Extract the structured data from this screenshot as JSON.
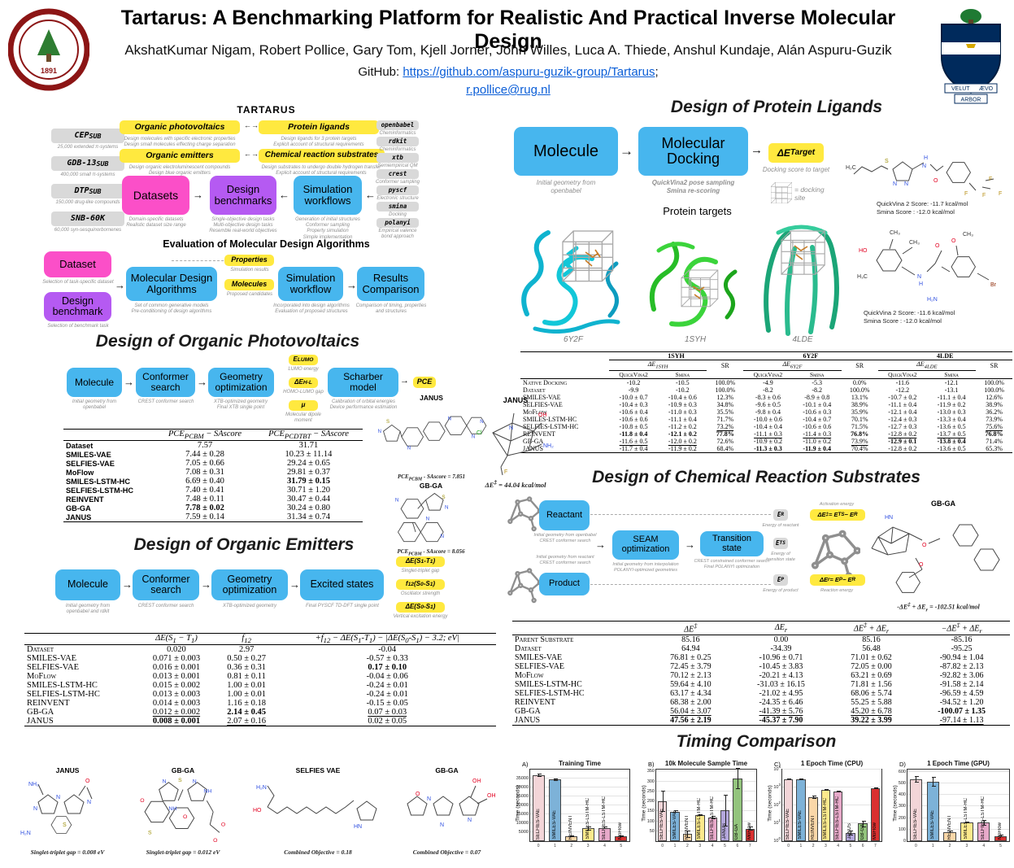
{
  "colors": {
    "blue": "#47b6ee",
    "yellow": "#ffe93f",
    "pink": "#fb4fc8",
    "purple": "#b55af2",
    "gray_box": "#d9d9d9",
    "link_blue": "#0b5ed7",
    "stanford_red": "#8c1515",
    "toronto_navy": "#002a5c"
  },
  "header": {
    "title": "Tartarus: A Benchmarking Platform for Realistic And Practical Inverse Molecular Design",
    "authors": "AkshatKumar Nigam, Robert Pollice, Gary Tom, Kjell Jorner, John Willes, Luca A. Thiede, Anshul Kundaje, Alán Aspuru-Guzik",
    "github_prefix": "GitHub: ",
    "github_url": "https://github.com/aspuru-guzik-group/Tartarus",
    "github_suffix": ";",
    "email": "r.pollice@rug.nl",
    "toronto_motto_left": "VELUT",
    "toronto_motto_right": "ÆVO",
    "toronto_motto_center": "ARBOR",
    "stanford_year": "1891"
  },
  "tartarus": {
    "title": "TARTARUS",
    "datasets": [
      {
        "name": "CEP~SUB~",
        "caption": "25,000 extended π-systems"
      },
      {
        "name": "GDB-13~SUB~",
        "caption": "400,000 small π-systems"
      },
      {
        "name": "DTP~SUB~",
        "caption": "150,000 drug-like compounds"
      },
      {
        "name": "SNB-60K",
        "caption": "60,000 syn-sesquinorbornenes"
      }
    ],
    "benchmark_boxes": [
      {
        "label": "Organic photovoltaics",
        "caption": "Design molecules with specific electronic properties\nDesign small molecules effecting charge separation"
      },
      {
        "label": "Protein ligands",
        "caption": "Design ligands for 3 protein targets\nExplicit account of structural requirements"
      },
      {
        "label": "Organic emitters",
        "caption": "Design organic electroluminescent compounds\nDesign blue organic emitters"
      },
      {
        "label": "Chemical reaction substrates",
        "caption": "Design substrates to undergo double hydrogen transfer\nExplicit account of structural requirements"
      }
    ],
    "datasets_box": {
      "label": "Datasets",
      "caption": "Domain-specific datasets\nRealistic dataset size range"
    },
    "benchmarks_box": {
      "label": "Design\nbenchmarks",
      "caption": "Single-objective design tasks\nMulti-objective design tasks\nResemble real-world objectives"
    },
    "workflows_box": {
      "label": "Simulation\nworkflows",
      "caption": "Generation of initial structures\nConformer sampling\nProperty simulation\nSimple implementation"
    },
    "tools": [
      {
        "name": "openbabel",
        "caption": "Cheminformatics"
      },
      {
        "name": "rdkit",
        "caption": "Cheminformatics"
      },
      {
        "name": "xtb",
        "caption": "Semiempirical QM"
      },
      {
        "name": "crest",
        "caption": "Conformer sampling"
      },
      {
        "name": "pyscf",
        "caption": "Electronic structure"
      },
      {
        "name": "smina",
        "caption": "Docking"
      },
      {
        "name": "polanyi",
        "caption": "Empirical valence\nbond approach"
      }
    ]
  },
  "evaluation": {
    "title": "Evaluation of Molecular Design Algorithms",
    "dataset": {
      "label": "Dataset",
      "caption": "Selection of task-specific dataset"
    },
    "benchmark": {
      "label": "Design\nbenchmark",
      "caption": "Selection of benchmark task"
    },
    "algorithms": {
      "label": "Molecular Design\nAlgorithms",
      "caption": "Set of common generative models\nPre-conditioning of design algorithms"
    },
    "properties": {
      "label": "Properties",
      "caption": "Simulation results"
    },
    "molecules": {
      "label": "Molecules",
      "caption": "Proposed candidates"
    },
    "workflow": {
      "label": "Simulation\nworkflow",
      "caption": "Incorporated into design algorithms\nEvaluation of proposed structures"
    },
    "results": {
      "label": "Results\nComparison",
      "caption": "Comparison of timing, properties\nand structures"
    }
  },
  "photovoltaics": {
    "heading": "Design of Organic Photovoltaics",
    "boxes": [
      {
        "label": "Molecule",
        "caption": "Initial geometry from\nopenbabel"
      },
      {
        "label": "Conformer\nsearch",
        "caption": "CREST conformer search"
      },
      {
        "label": "Geometry\noptimization",
        "caption": "XTB-optimized geometry\nFinal XTB single point"
      },
      {
        "label": "Scharber model",
        "caption": "Calibration of orbital energies\nDevice performance estimation"
      }
    ],
    "outputs": [
      {
        "label": "E~LUMO~",
        "caption": "LUMO energy"
      },
      {
        "label": "ΔE~H-L~",
        "caption": "HOMO-LUMO gap"
      },
      {
        "label": "μ",
        "caption": "Molecular dipole moment"
      }
    ],
    "result_label": "PCE",
    "table": {
      "cls": "sansLabels",
      "headers": [
        "",
        "PCE~PCBM~ − SAscore",
        "PCE~PCDTBT~ − SAscore"
      ],
      "rows": [
        [
          "Dataset",
          "7.57",
          "31.71"
        ],
        [
          "SMILES-VAE",
          "7.44 ± 0.28",
          "10.23 ± 11.14"
        ],
        [
          "SELFIES-VAE",
          "7.05 ± 0.66",
          "29.24 ± 0.65"
        ],
        [
          "MoFlow",
          "7.08 ± 0.31",
          "29.81 ± 0.37"
        ],
        [
          "SMILES-LSTM-HC",
          "6.69 ± 0.40",
          "*31.79 ± 0.15"
        ],
        [
          "SELFIES-LSTM-HC",
          "7.40 ± 0.41",
          "30.71 ± 1.20"
        ],
        [
          "REINVENT",
          "7.48 ± 0.11",
          "30.47 ± 0.44"
        ],
        [
          "GB-GA",
          "*7.78 ± 0.02",
          "30.24 ± 0.80"
        ],
        [
          "JANUS",
          "7.59 ± 0.14",
          "31.34 ± 0.74"
        ]
      ]
    },
    "molecules": [
      {
        "name": "JANUS",
        "caption": "PCE~PCBM~ - SAscore = 7.851"
      },
      {
        "name": "GB-GA",
        "caption": "PCE~PCBM~ - SAscore = 8.056"
      }
    ]
  },
  "emitters": {
    "heading": "Design of Organic Emitters",
    "boxes": [
      {
        "label": "Molecule",
        "caption": "Initial geometry from\nopenbabel and rdkit"
      },
      {
        "label": "Conformer\nsearch",
        "caption": "CREST conformer search"
      },
      {
        "label": "Geometry\noptimization",
        "caption": "XTB-optimized geometry"
      },
      {
        "label": "Excited states",
        "caption": "Final PYSCF TD-DFT single point"
      }
    ],
    "outputs": [
      {
        "label": "ΔE(S~1~-T~1~)",
        "caption": "Singlet-triplet gap"
      },
      {
        "label": "f~12~(S~0~-S~1~)",
        "caption": "Oscillator strength"
      },
      {
        "label": "ΔE(S~0~-S~1~)",
        "caption": "Vertical excitation energy"
      }
    ],
    "table": {
      "headers": [
        "",
        "ΔE(S~1~ − T~1~)",
        "f~12~",
        "+f~12~ − ΔE(S~1~-T~1~) − |ΔE(S~0~-S~1~) − 3.2; eV|"
      ],
      "rows": [
        [
          "Dataset",
          "0.020",
          "2.97",
          "-0.04"
        ],
        [
          "SMILES-VAE",
          "0.071 ± 0.003",
          "0.50 ± 0.27",
          "-0.57 ± 0.33"
        ],
        [
          "SELFIES-VAE",
          "0.016 ± 0.001",
          "0.36 ± 0.31",
          "*0.17 ± 0.10"
        ],
        [
          "MoFlow",
          "0.013 ± 0.001",
          "0.81 ± 0.11",
          "-0.04 ± 0.06"
        ],
        [
          "SMILES-LSTM-HC",
          "0.015 ± 0.002",
          "1.00 ± 0.01",
          "-0.24 ± 0.01"
        ],
        [
          "SELFIES-LSTM-HC",
          "0.013 ± 0.003",
          "1.00 ± 0.01",
          "-0.24 ± 0.01"
        ],
        [
          "REINVENT",
          "0.014 ± 0.003",
          "1.16 ± 0.18",
          "-0.15 ± 0.05"
        ],
        [
          "GB-GA",
          "_0.012 ± 0.002",
          "*2.14 ± 0.45",
          "_0.07 ± 0.03"
        ],
        [
          "JANUS",
          "*0.008 ± 0.001",
          "_2.07 ± 0.16",
          "0.02 ± 0.05"
        ]
      ]
    },
    "example_molecules": [
      {
        "name": "JANUS",
        "caption": "Singlet-triplet gap = 0.008 eV"
      },
      {
        "name": "GB-GA",
        "caption": "Singlet-triplet gap = 0.012 eV"
      },
      {
        "name": "SELFIES VAE",
        "caption": "Combined Objective = 0.18"
      },
      {
        "name": "GB-GA",
        "caption": "Combined Objective = 0.07"
      }
    ]
  },
  "protein_ligands": {
    "heading": "Design of Protein Ligands",
    "molecule_box": {
      "label": "Molecule",
      "caption": "Initial geometry from\nopenbabel"
    },
    "docking_box": {
      "label": "Molecular\nDocking",
      "caption": "QuickVina2 pose sampling\nSmina re-scoring"
    },
    "output": {
      "label": "ΔE~Target~",
      "caption": "Docking score to target"
    },
    "site_legend": "= docking\nsite",
    "targets_label": "Protein targets",
    "targets": [
      "6Y2F",
      "1SYH",
      "4LDE"
    ],
    "ligands": [
      {
        "line1": "QuickVina 2 Score: -11.7 kcal/mol",
        "line2": "Smina Score : -12.0 kcal/mol"
      },
      {
        "line1": "QuickVina 2 Score: -11.6 kcal/mol",
        "line2": "Smina Score : -12.0 kcal/mol"
      }
    ],
    "table": {
      "groups": [
        "1SYH",
        "6Y2F",
        "4LDE"
      ],
      "de_labels": [
        "ΔE~1SYH~",
        "ΔE~6Y2F~",
        "ΔE~4LDE~"
      ],
      "sr": "SR",
      "methods": [
        "QuickVina2",
        "Smina"
      ],
      "rows": [
        [
          "Native Docking",
          "-10.2",
          "-10.5",
          "100.0%",
          "-4.9",
          "-5.3",
          "0.0%",
          "-11.6",
          "-12.1",
          "100.0%"
        ],
        [
          "Dataset",
          "-9.9",
          "-10.2",
          "100.0%",
          "-8.2",
          "-8.2",
          "100.0%",
          "-12.2",
          "-13.1",
          "100.0%"
        ],
        [
          "SMILES-VAE",
          "-10.0 ± 0.7",
          "-10.4 ± 0.6",
          "12.3%",
          "-8.3 ± 0.6",
          "-8.9 ± 0.8",
          "13.1%",
          "-10.7 ± 0.2",
          "-11.1 ± 0.4",
          "12.6%"
        ],
        [
          "SELFIES-VAE",
          "-10.4 ± 0.3",
          "-10.9 ± 0.3",
          "34.8%",
          "-9.6 ± 0.5",
          "-10.1 ± 0.4",
          "38.9%",
          "-11.1 ± 0.4",
          "-11.9 ± 0.2",
          "38.9%"
        ],
        [
          "MoFlow",
          "-10.6 ± 0.4",
          "-11.0 ± 0.3",
          "35.5%",
          "-9.8 ± 0.4",
          "-10.6 ± 0.3",
          "35.9%",
          "-12.1 ± 0.4",
          "-13.0 ± 0.3",
          "36.2%"
        ],
        [
          "SMILES-LSTM-HC",
          "-10.6 ± 0.6",
          "-11.1 ± 0.4",
          "71.7%",
          "-10.0 ± 0.6",
          "-10.4 ± 0.7",
          "70.1%",
          "-12.4 ± 0.3",
          "-13.3 ± 0.4",
          "73.9%"
        ],
        [
          "SELFIES-LSTM-HC",
          "-10.8 ± 0.5",
          "-11.2 ± 0.2",
          "_73.2%",
          "-10.4 ± 0.4",
          "-10.6 ± 0.6",
          "71.5%",
          "-12.7 ± 0.3",
          "-13.6 ± 0.5",
          "_75.6%"
        ],
        [
          "REINVENT",
          "*-11.8 ± 0.4",
          "*-12.1 ± 0.2",
          "*77.8%",
          "_-11.1 ± 0.3",
          "_-11.4 ± 0.3",
          "*76.8%",
          "_-12.8 ± 0.2",
          "_-13.7 ± 0.5",
          "*76.8%"
        ],
        [
          "GB-GA",
          "_-11.6 ± 0.5",
          "_-12.0 ± 0.2",
          "72.6%",
          "-10.9 ± 0.2",
          "-11.0 ± 0.2",
          "_73.9%",
          "*-12.9 ± 0.1",
          "*-13.8 ± 0.4",
          "71.4%"
        ],
        [
          "JANUS",
          "-11.7 ± 0.4",
          "-11.9 ± 0.2",
          "68.4%",
          "*-11.3 ± 0.3",
          "*-11.9 ± 0.4",
          "70.4%",
          "-12.8 ± 0.2",
          "-13.6 ± 0.5",
          "65.3%"
        ]
      ]
    }
  },
  "reaction": {
    "heading": "Design of Chemical Reaction Substrates",
    "janus_example": {
      "name": "JANUS",
      "caption": "ΔE^‡^ = 44.04 kcal/mol"
    },
    "reactant": {
      "label": "Reactant",
      "caption": "Initial geometry from openbabel\nCREST conformer search"
    },
    "product": {
      "label": "Product",
      "caption": "Initial geometry from reactant\nCREST conformer search"
    },
    "seam": {
      "label": "SEAM\noptimization",
      "caption": "Initial geometry from interpolation\nPOLANYI-optimized geometries"
    },
    "ts": {
      "label": "Transition state",
      "caption": "CREST constrained conformer search\nFinal POLANYI optimization"
    },
    "energies": [
      {
        "label": "E~R~",
        "caption": "Energy of reactant"
      },
      {
        "label": "E~TS~",
        "caption": "Energy of\ntransition state"
      },
      {
        "label": "E~P~",
        "caption": "Energy of product"
      }
    ],
    "eq_activation": {
      "label": "ΔE^‡^ = E~TS~ − E~R~",
      "caption": "Activation energy"
    },
    "eq_reaction": {
      "label": "ΔE~r~ = E~P~ − E~R~",
      "caption": "Reaction energy"
    },
    "gbga_example": {
      "name": "GB-GA",
      "caption": "-ΔE^‡^ + ΔE~r~ = -102.51 kcal/mol"
    },
    "table": {
      "headers": [
        "",
        "ΔE^‡^",
        "ΔE~r~",
        "ΔE^‡^ + ΔE~r~",
        "−ΔE^‡^ + ΔE~r~"
      ],
      "rows": [
        [
          "Parent Substrate",
          "85.16",
          "0.00",
          "85.16",
          "-85.16"
        ],
        [
          "Dataset",
          "64.94",
          "-34.39",
          "56.48",
          "-95.25"
        ],
        [
          "SMILES-VAE",
          "76.81 ± 0.25",
          "-10.96 ± 0.71",
          "71.01 ± 0.62",
          "-90.94 ± 1.04"
        ],
        [
          "SELFIES-VAE",
          "72.45 ± 3.79",
          "-10.45 ± 3.83",
          "72.05 ± 0.00",
          "-87.82 ± 2.13"
        ],
        [
          "MoFlow",
          "70.12 ± 2.13",
          "-20.21 ± 4.13",
          "63.21 ± 0.69",
          "-92.82 ± 3.06"
        ],
        [
          "SMILES-LSTM-HC",
          "59.64 ± 4.10",
          "-31.03 ± 16.15",
          "71.81 ± 1.56",
          "-91.58 ± 2.14"
        ],
        [
          "SELFIES-LSTM-HC",
          "63.17 ± 4.34",
          "-21.02 ± 4.95",
          "68.06 ± 5.74",
          "-96.59 ± 4.59"
        ],
        [
          "REINVENT",
          "68.38 ± 2.00",
          "-24.35 ± 6.46",
          "55.25 ± 5.88",
          "-94.52 ± 1.20"
        ],
        [
          "GB-GA",
          "_56.04 ± 3.07",
          "_-41.39 ± 5.76",
          "_45.20 ± 6.78",
          "*-100.07 ± 1.35"
        ],
        [
          "JANUS",
          "*47.56 ± 2.19",
          "*-45.37 ± 7.90",
          "*39.22 ± 3.99",
          "_-97.14 ± 1.13"
        ]
      ]
    }
  },
  "timing": {
    "heading": "Timing Comparison"
  },
  "chart_data": [
    {
      "type": "bar",
      "panel": "A)",
      "title": "Training Time",
      "ylabel": "Time (seconds)",
      "log": false,
      "categories": [
        "SELFIES-VAE",
        "SMILES-VAE",
        "REINVENT",
        "SMILES-LSTM-HC",
        "SELFIES-LSTM-HC",
        "MoFlow"
      ],
      "values": [
        37000,
        34500,
        2800,
        7200,
        7500,
        2700
      ],
      "errors": [
        900,
        700,
        400,
        1100,
        900,
        300
      ],
      "colors": [
        "#f3d5d8",
        "#7db2d8",
        "#fad7a8",
        "#fce98c",
        "#e7a9c9",
        "#d93030"
      ],
      "ylim": [
        0,
        40000
      ],
      "yticks": [
        5000,
        10000,
        15000,
        20000,
        25000,
        30000,
        35000
      ],
      "xticks": [
        0,
        1,
        2,
        3,
        4,
        5
      ],
      "grid": true,
      "legend": "none"
    },
    {
      "type": "bar",
      "panel": "B)",
      "title": "10k Molecule Sample Time",
      "ylabel": "Time (seconds)",
      "log": false,
      "categories": [
        "SELFIES-VAE",
        "SMILES-VAE",
        "REINVENT",
        "SMILES-LSTM-HC",
        "SELFIES-LSTM-HC",
        "JANUS",
        "GB-GA",
        "MoFlow"
      ],
      "values": [
        200,
        148,
        35,
        130,
        120,
        155,
        315,
        62
      ],
      "errors": [
        52,
        6,
        18,
        5,
        8,
        80,
        55,
        10
      ],
      "colors": [
        "#f3d5d8",
        "#7db2d8",
        "#fad7a8",
        "#fce98c",
        "#e7a9c9",
        "#b4a7dc",
        "#93c47d",
        "#d93030"
      ],
      "ylim": [
        0,
        360
      ],
      "yticks": [
        50,
        100,
        150,
        200,
        250,
        300,
        350
      ],
      "xticks": [
        0,
        1,
        2,
        3,
        4,
        5,
        6,
        7
      ],
      "grid": true,
      "legend": "none"
    },
    {
      "type": "bar",
      "panel": "C)",
      "title": "1 Epoch Time (CPU)",
      "ylabel": "Time (seconds)",
      "log": true,
      "categories": [
        "SELFIES-VAE",
        "SMILES-VAE",
        "REINVENT",
        "SMILES-LSTM-HC",
        "SELFIES-LSTM-HC",
        "JANUS",
        "GB-GA",
        "MoFlow"
      ],
      "values": [
        3000,
        2900,
        280,
        750,
        600,
        3,
        10,
        900
      ],
      "errors": [
        200,
        200,
        60,
        60,
        50,
        1,
        4,
        60
      ],
      "colors": [
        "#f3d5d8",
        "#7db2d8",
        "#fad7a8",
        "#fce98c",
        "#e7a9c9",
        "#b4a7dc",
        "#93c47d",
        "#d93030"
      ],
      "ylim": [
        1,
        10000
      ],
      "yticks": [
        1,
        10,
        100,
        1000,
        10000
      ],
      "ytick_labels": [
        "10^0^",
        "10^1^",
        "10^2^",
        "10^3^",
        "10^4^"
      ],
      "xticks": [
        0,
        1,
        2,
        3,
        4,
        5,
        6,
        7
      ],
      "grid": true,
      "legend": "none"
    },
    {
      "type": "bar",
      "panel": "D)",
      "title": "1 Epoch Time (GPU)",
      "ylabel": "Time (seconds)",
      "log": false,
      "categories": [
        "SELFIES-VAE",
        "SMILES-VAE",
        "REINVENT",
        "SMILES-LSTM-HC",
        "SELFIES-LSTM-HC",
        "MoFlow"
      ],
      "values": [
        535,
        515,
        80,
        160,
        160,
        45
      ],
      "errors": [
        30,
        40,
        10,
        8,
        25,
        8
      ],
      "colors": [
        "#f3d5d8",
        "#7db2d8",
        "#fad7a8",
        "#fce98c",
        "#e7a9c9",
        "#d93030"
      ],
      "ylim": [
        0,
        620
      ],
      "yticks": [
        0,
        100,
        200,
        300,
        400,
        500,
        600
      ],
      "xticks": [
        0,
        1,
        2,
        3,
        4,
        5
      ],
      "grid": true,
      "legend": "none"
    }
  ]
}
